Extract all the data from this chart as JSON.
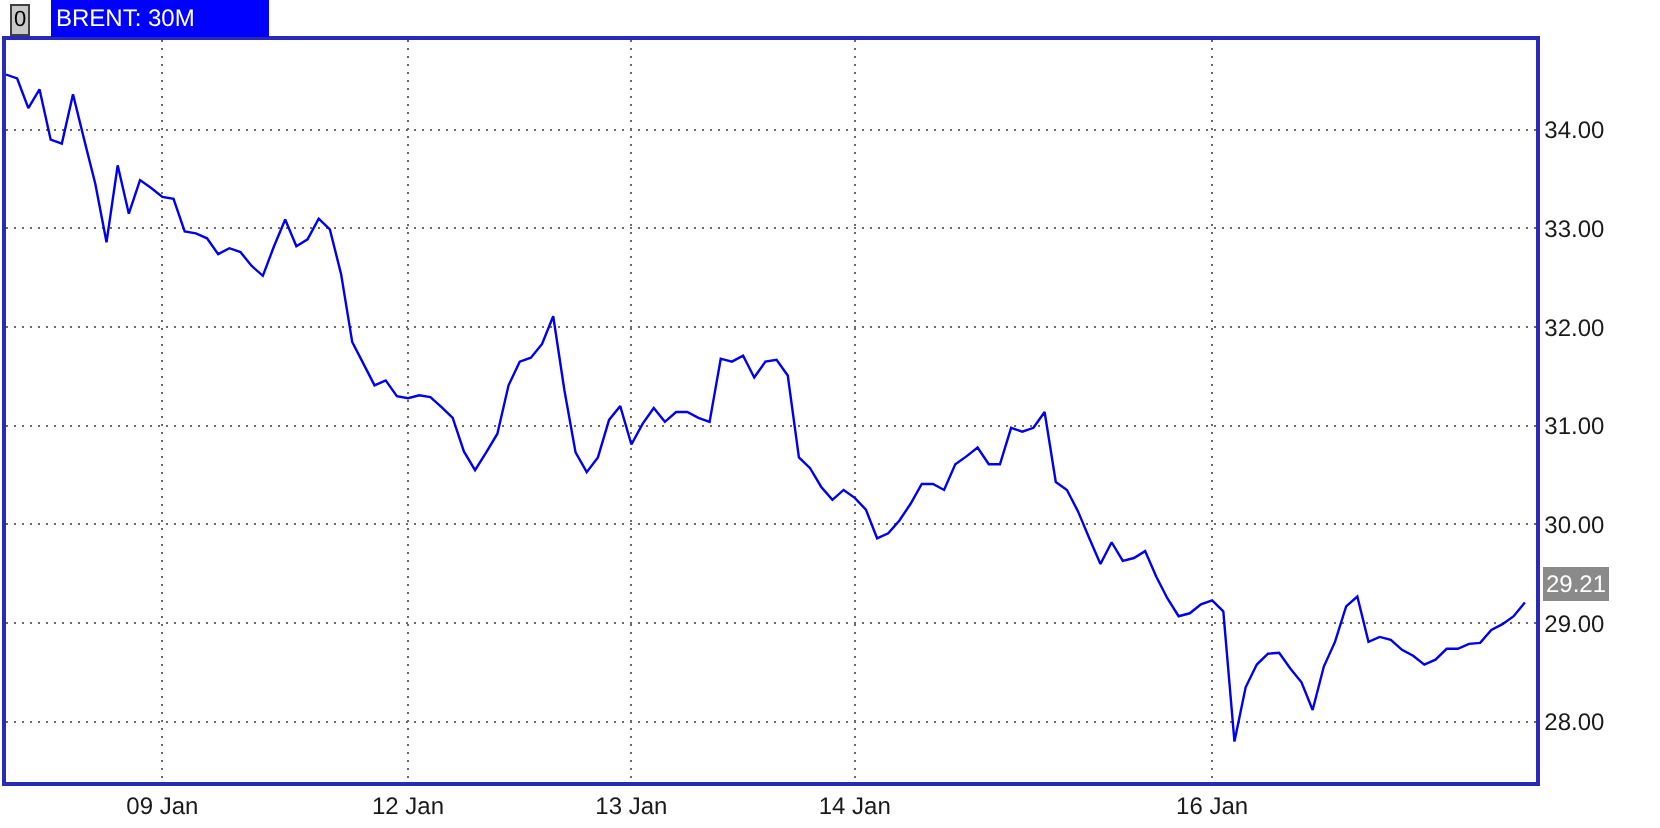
{
  "chart_data": {
    "type": "line",
    "title": "BRENT: 30M",
    "categories": [
      null,
      null,
      null,
      null,
      null,
      null,
      null,
      null,
      null,
      null,
      null,
      null,
      null,
      null,
      "09 Jan",
      null,
      null,
      null,
      null,
      null,
      null,
      null,
      null,
      null,
      null,
      null,
      null,
      null,
      null,
      null,
      null,
      null,
      null,
      null,
      null,
      null,
      "12 Jan",
      null,
      null,
      null,
      null,
      null,
      null,
      null,
      null,
      null,
      null,
      null,
      null,
      null,
      null,
      null,
      null,
      null,
      null,
      null,
      "13 Jan",
      null,
      null,
      null,
      null,
      null,
      null,
      null,
      null,
      null,
      null,
      null,
      null,
      null,
      null,
      null,
      null,
      null,
      null,
      null,
      "14 Jan",
      null,
      null,
      null,
      null,
      null,
      null,
      null,
      null,
      null,
      null,
      null,
      null,
      null,
      null,
      null,
      null,
      null,
      null,
      null,
      null,
      null,
      null,
      null,
      null,
      null,
      null,
      null,
      null,
      null,
      null,
      null,
      "16 Jan",
      null,
      null,
      null,
      null,
      null,
      null,
      null,
      null,
      null,
      null,
      null,
      null,
      null,
      null,
      null,
      null,
      null,
      null,
      null,
      null,
      null,
      null,
      null,
      null,
      null,
      null,
      null,
      null
    ],
    "series": [
      {
        "color": "#0000ee",
        "values": [
          34.56,
          34.52,
          34.22,
          34.41,
          33.9,
          33.86,
          34.36,
          33.9,
          33.45,
          32.86,
          33.64,
          33.15,
          33.49,
          33.41,
          33.32,
          33.3,
          32.97,
          32.95,
          32.9,
          32.74,
          32.8,
          32.76,
          32.62,
          32.52,
          32.82,
          33.09,
          32.82,
          32.89,
          33.1,
          32.99,
          32.54,
          31.85,
          31.63,
          31.41,
          31.46,
          31.3,
          31.28,
          31.31,
          31.29,
          31.19,
          31.08,
          30.74,
          30.55,
          30.73,
          30.92,
          31.41,
          31.65,
          31.69,
          31.83,
          32.11,
          31.36,
          30.73,
          30.53,
          30.68,
          31.06,
          31.2,
          30.81,
          31.02,
          31.18,
          31.04,
          31.14,
          31.14,
          31.08,
          31.04,
          31.68,
          31.65,
          31.71,
          31.49,
          31.65,
          31.67,
          31.51,
          30.68,
          30.57,
          30.38,
          30.25,
          30.35,
          30.27,
          30.15,
          29.86,
          29.91,
          30.04,
          30.21,
          30.41,
          30.41,
          30.35,
          30.61,
          30.69,
          30.78,
          30.61,
          30.61,
          30.98,
          30.94,
          30.98,
          31.14,
          30.43,
          30.35,
          30.13,
          29.86,
          29.6,
          29.82,
          29.63,
          29.66,
          29.73,
          29.47,
          29.25,
          29.07,
          29.1,
          29.19,
          29.23,
          29.12,
          27.8,
          28.35,
          28.58,
          28.69,
          28.7,
          28.54,
          28.4,
          28.12,
          28.56,
          28.81,
          29.17,
          29.27,
          28.81,
          28.86,
          28.83,
          28.73,
          28.67,
          28.58,
          28.63,
          28.74,
          28.74,
          28.79,
          28.8,
          28.93,
          28.99,
          29.07,
          29.21
        ]
      }
    ],
    "ylim": [
      27.39,
      34.91
    ],
    "yticks": [
      {
        "value": 28,
        "label": "28.00"
      },
      {
        "value": 29,
        "label": "29.00"
      },
      {
        "value": 30,
        "label": "30.00"
      },
      {
        "value": 31,
        "label": "31.00"
      },
      {
        "value": 32,
        "label": "32.00"
      },
      {
        "value": 33,
        "label": "33.00"
      },
      {
        "value": 34,
        "label": "34.00"
      }
    ],
    "grid": true,
    "annotations": [
      "0",
      "29.21"
    ]
  }
}
